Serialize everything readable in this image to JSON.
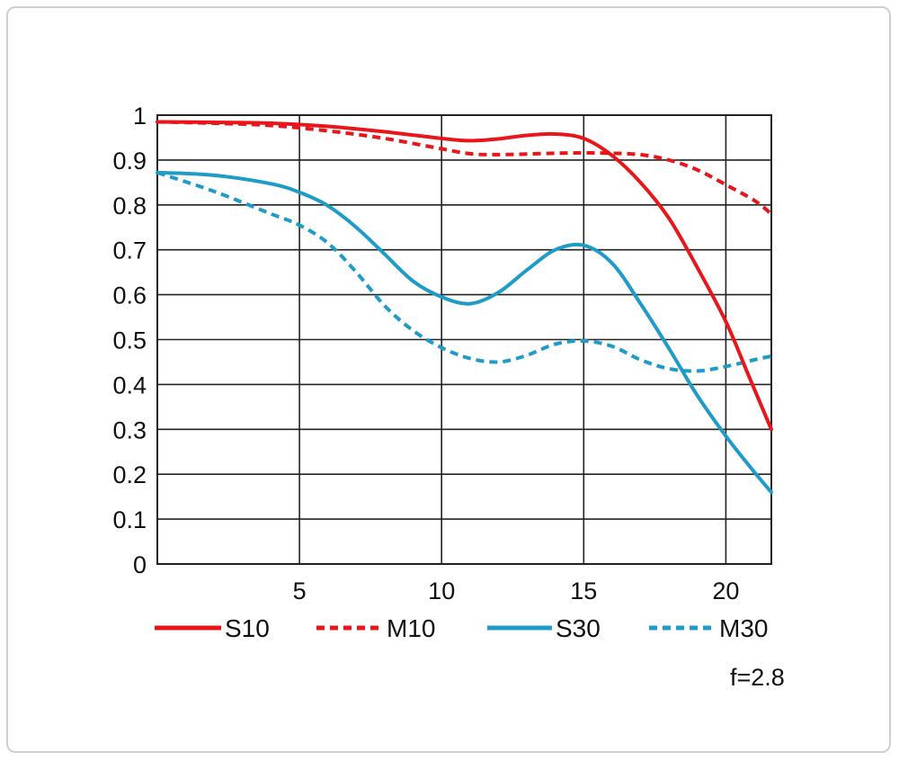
{
  "chart_data": {
    "type": "line",
    "title": "",
    "xlabel": "",
    "ylabel": "",
    "xlim": [
      0,
      21.6
    ],
    "ylim": [
      0,
      1
    ],
    "x_ticks": [
      "5",
      "10",
      "15",
      "20"
    ],
    "x_tick_values": [
      5,
      10,
      15,
      20
    ],
    "y_ticks": [
      "0",
      "0.1",
      "0.2",
      "0.3",
      "0.4",
      "0.5",
      "0.6",
      "0.7",
      "0.8",
      "0.9",
      "1"
    ],
    "y_tick_values": [
      0,
      0.1,
      0.2,
      0.3,
      0.4,
      0.5,
      0.6,
      0.7,
      0.8,
      0.9,
      1
    ],
    "grid": true,
    "legend_position": "bottom",
    "series": [
      {
        "name": "S10",
        "color": "#e8161b",
        "dashed": false,
        "points": [
          [
            0,
            0.985
          ],
          [
            2,
            0.984
          ],
          [
            4,
            0.982
          ],
          [
            6,
            0.975
          ],
          [
            8,
            0.963
          ],
          [
            10,
            0.948
          ],
          [
            11,
            0.943
          ],
          [
            12,
            0.947
          ],
          [
            13,
            0.955
          ],
          [
            14,
            0.958
          ],
          [
            15,
            0.948
          ],
          [
            16,
            0.91
          ],
          [
            17,
            0.85
          ],
          [
            18,
            0.77
          ],
          [
            19,
            0.66
          ],
          [
            20,
            0.54
          ],
          [
            20.8,
            0.42
          ],
          [
            21.6,
            0.3
          ]
        ]
      },
      {
        "name": "M10",
        "color": "#e8161b",
        "dashed": true,
        "points": [
          [
            0,
            0.985
          ],
          [
            2,
            0.982
          ],
          [
            4,
            0.977
          ],
          [
            6,
            0.965
          ],
          [
            8,
            0.948
          ],
          [
            10,
            0.925
          ],
          [
            11,
            0.914
          ],
          [
            12,
            0.912
          ],
          [
            14,
            0.915
          ],
          [
            15,
            0.916
          ],
          [
            16,
            0.915
          ],
          [
            17,
            0.912
          ],
          [
            18,
            0.9
          ],
          [
            19,
            0.878
          ],
          [
            20,
            0.845
          ],
          [
            21,
            0.81
          ],
          [
            21.6,
            0.78
          ]
        ]
      },
      {
        "name": "S30",
        "color": "#1e9bc6",
        "dashed": false,
        "points": [
          [
            0,
            0.872
          ],
          [
            2,
            0.866
          ],
          [
            4,
            0.847
          ],
          [
            5,
            0.828
          ],
          [
            6,
            0.798
          ],
          [
            7,
            0.75
          ],
          [
            8,
            0.69
          ],
          [
            9,
            0.63
          ],
          [
            10,
            0.595
          ],
          [
            11,
            0.58
          ],
          [
            12,
            0.605
          ],
          [
            13,
            0.655
          ],
          [
            14,
            0.7
          ],
          [
            15,
            0.71
          ],
          [
            16,
            0.67
          ],
          [
            17,
            0.58
          ],
          [
            18,
            0.48
          ],
          [
            19,
            0.375
          ],
          [
            20,
            0.285
          ],
          [
            21,
            0.205
          ],
          [
            21.6,
            0.16
          ]
        ]
      },
      {
        "name": "M30",
        "color": "#1e9bc6",
        "dashed": true,
        "points": [
          [
            0,
            0.872
          ],
          [
            2,
            0.83
          ],
          [
            4,
            0.78
          ],
          [
            5,
            0.755
          ],
          [
            6,
            0.715
          ],
          [
            7,
            0.65
          ],
          [
            8,
            0.575
          ],
          [
            9,
            0.52
          ],
          [
            10,
            0.482
          ],
          [
            11,
            0.458
          ],
          [
            12,
            0.45
          ],
          [
            13,
            0.465
          ],
          [
            14,
            0.49
          ],
          [
            15,
            0.497
          ],
          [
            16,
            0.485
          ],
          [
            17,
            0.455
          ],
          [
            18,
            0.435
          ],
          [
            19,
            0.43
          ],
          [
            20,
            0.44
          ],
          [
            21,
            0.455
          ],
          [
            21.6,
            0.463
          ]
        ]
      }
    ],
    "annotation": "f=2.8"
  }
}
